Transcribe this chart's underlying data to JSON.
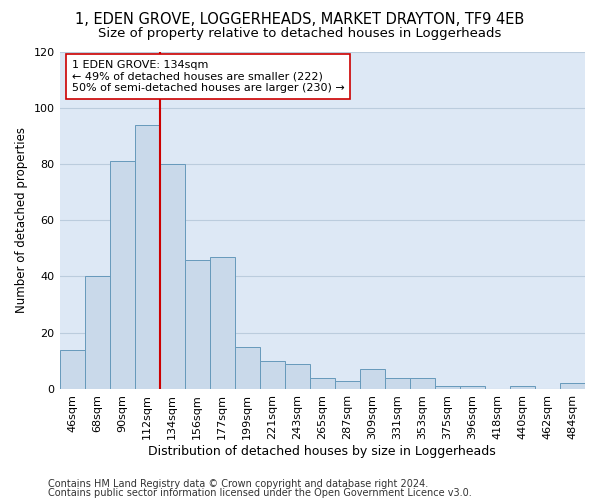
{
  "title1": "1, EDEN GROVE, LOGGERHEADS, MARKET DRAYTON, TF9 4EB",
  "title2": "Size of property relative to detached houses in Loggerheads",
  "xlabel": "Distribution of detached houses by size in Loggerheads",
  "ylabel": "Number of detached properties",
  "categories": [
    "46sqm",
    "68sqm",
    "90sqm",
    "112sqm",
    "134sqm",
    "156sqm",
    "177sqm",
    "199sqm",
    "221sqm",
    "243sqm",
    "265sqm",
    "287sqm",
    "309sqm",
    "331sqm",
    "353sqm",
    "375sqm",
    "396sqm",
    "418sqm",
    "440sqm",
    "462sqm",
    "484sqm"
  ],
  "values": [
    14,
    40,
    81,
    94,
    80,
    46,
    47,
    15,
    10,
    9,
    4,
    3,
    7,
    4,
    4,
    1,
    1,
    0,
    1,
    0,
    2
  ],
  "bar_color": "#c9d9ea",
  "bar_edge_color": "#6699bb",
  "vline_color": "#cc0000",
  "annotation_text": "1 EDEN GROVE: 134sqm\n← 49% of detached houses are smaller (222)\n50% of semi-detached houses are larger (230) →",
  "annotation_box_color": "#ffffff",
  "annotation_box_edge": "#cc0000",
  "grid_color": "#bbccdd",
  "background_color": "#dde8f5",
  "footer1": "Contains HM Land Registry data © Crown copyright and database right 2024.",
  "footer2": "Contains public sector information licensed under the Open Government Licence v3.0.",
  "ylim": [
    0,
    120
  ],
  "yticks": [
    0,
    20,
    40,
    60,
    80,
    100,
    120
  ],
  "title1_fontsize": 10.5,
  "title2_fontsize": 9.5,
  "xlabel_fontsize": 9,
  "ylabel_fontsize": 8.5,
  "tick_fontsize": 8,
  "annotation_fontsize": 8,
  "footer_fontsize": 7
}
